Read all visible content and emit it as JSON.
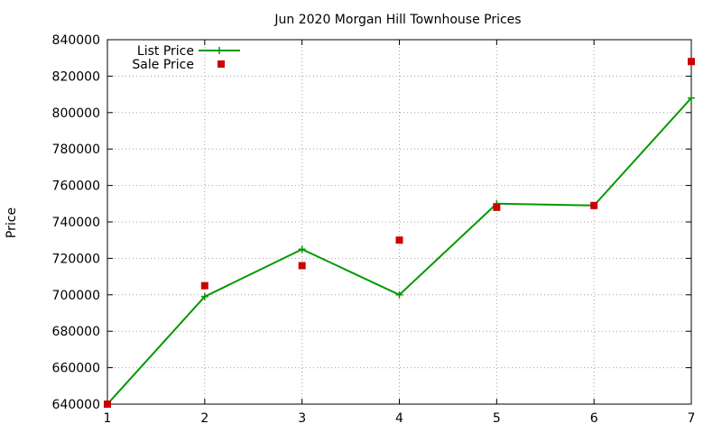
{
  "chart_data": {
    "type": "line",
    "title": "Jun 2020 Morgan Hill Townhouse Prices",
    "xlabel": "",
    "ylabel": "Price",
    "xlim": [
      1,
      7
    ],
    "ylim": [
      640000,
      840000
    ],
    "x_ticks": [
      "1",
      "2",
      "3",
      "4",
      "5",
      "6",
      "7"
    ],
    "y_ticks": [
      "640000",
      "660000",
      "680000",
      "700000",
      "720000",
      "740000",
      "760000",
      "780000",
      "800000",
      "820000",
      "840000"
    ],
    "grid": true,
    "legend_position": "top-left",
    "series": [
      {
        "name": "List Price",
        "style": "line-with-plus-markers",
        "color": "#009900",
        "x": [
          1,
          2,
          3,
          4,
          5,
          6,
          7
        ],
        "values": [
          640000,
          699000,
          725000,
          700000,
          750000,
          749000,
          808000
        ]
      },
      {
        "name": "Sale Price",
        "style": "square-points",
        "color": "#cc0000",
        "x": [
          1,
          2,
          3,
          4,
          5,
          6,
          7
        ],
        "values": [
          640000,
          705000,
          716000,
          730000,
          748000,
          749000,
          828000
        ]
      }
    ]
  }
}
